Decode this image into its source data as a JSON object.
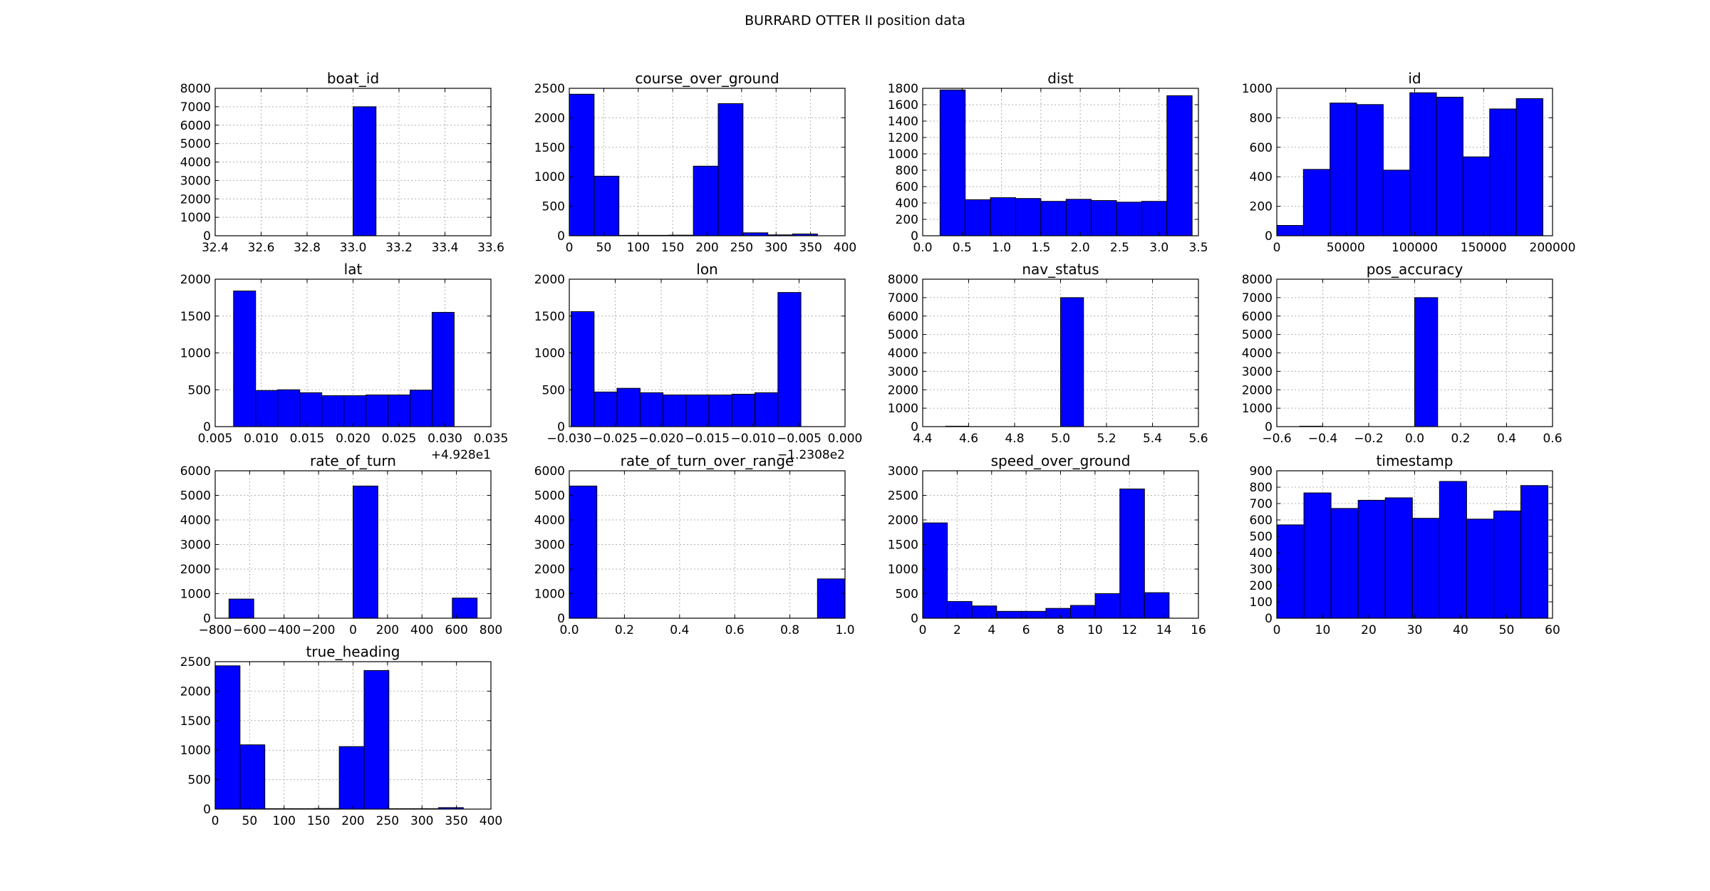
{
  "figure": {
    "title": "BURRARD OTTER II position data"
  },
  "style": {
    "bar_color": "#0000ff",
    "edge_color": "#000000",
    "grid_color": "#b0b0b0"
  },
  "chart_data": [
    {
      "type": "bar",
      "title": "boat_id",
      "xlim": [
        32.4,
        33.6
      ],
      "ylim": [
        0,
        8000
      ],
      "xticks": [
        32.4,
        32.6,
        32.8,
        33.0,
        33.2,
        33.4,
        33.6
      ],
      "xtick_labels": [
        "32.4",
        "32.6",
        "32.8",
        "33.0",
        "33.2",
        "33.4",
        "33.6"
      ],
      "yticks": [
        0,
        1000,
        2000,
        3000,
        4000,
        5000,
        6000,
        7000,
        8000
      ],
      "ytick_labels": [
        "0",
        "1000",
        "2000",
        "3000",
        "4000",
        "5000",
        "6000",
        "7000",
        "8000"
      ],
      "offset": "",
      "bins": [
        [
          33.0,
          33.1,
          7000
        ]
      ],
      "grid": true
    },
    {
      "type": "bar",
      "title": "course_over_ground",
      "xlim": [
        0,
        400
      ],
      "ylim": [
        0,
        2500
      ],
      "xticks": [
        0,
        50,
        100,
        150,
        200,
        250,
        300,
        350,
        400
      ],
      "xtick_labels": [
        "0",
        "50",
        "100",
        "150",
        "200",
        "250",
        "300",
        "350",
        "400"
      ],
      "yticks": [
        0,
        500,
        1000,
        1500,
        2000,
        2500
      ],
      "ytick_labels": [
        "0",
        "500",
        "1000",
        "1500",
        "2000",
        "2500"
      ],
      "offset": "",
      "bins": [
        [
          0,
          36,
          2400
        ],
        [
          36,
          72,
          1010
        ],
        [
          72,
          108,
          3
        ],
        [
          108,
          144,
          3
        ],
        [
          144,
          180,
          10
        ],
        [
          180,
          216,
          1180
        ],
        [
          216,
          252,
          2240
        ],
        [
          252,
          288,
          50
        ],
        [
          288,
          324,
          15
        ],
        [
          324,
          360,
          30
        ]
      ],
      "grid": true
    },
    {
      "type": "bar",
      "title": "dist",
      "xlim": [
        0,
        3.5
      ],
      "ylim": [
        0,
        1800
      ],
      "xticks": [
        0,
        0.5,
        1.0,
        1.5,
        2.0,
        2.5,
        3.0,
        3.5
      ],
      "xtick_labels": [
        "0.0",
        "0.5",
        "1.0",
        "1.5",
        "2.0",
        "2.5",
        "3.0",
        "3.5"
      ],
      "yticks": [
        0,
        200,
        400,
        600,
        800,
        1000,
        1200,
        1400,
        1600,
        1800
      ],
      "ytick_labels": [
        "0",
        "200",
        "400",
        "600",
        "800",
        "1000",
        "1200",
        "1400",
        "1600",
        "1800"
      ],
      "offset": "",
      "bins": [
        [
          0.22,
          0.54,
          1780
        ],
        [
          0.54,
          0.86,
          440
        ],
        [
          0.86,
          1.18,
          465
        ],
        [
          1.18,
          1.5,
          455
        ],
        [
          1.5,
          1.82,
          420
        ],
        [
          1.82,
          2.14,
          445
        ],
        [
          2.14,
          2.46,
          430
        ],
        [
          2.46,
          2.78,
          410
        ],
        [
          2.78,
          3.1,
          420
        ],
        [
          3.1,
          3.42,
          1710
        ]
      ],
      "grid": true
    },
    {
      "type": "bar",
      "title": "id",
      "xlim": [
        0,
        200000
      ],
      "ylim": [
        0,
        1000
      ],
      "xticks": [
        0,
        50000,
        100000,
        150000,
        200000
      ],
      "xtick_labels": [
        "0",
        "50000",
        "100000",
        "150000",
        "200000"
      ],
      "yticks": [
        0,
        200,
        400,
        600,
        800,
        1000
      ],
      "ytick_labels": [
        "0",
        "200",
        "400",
        "600",
        "800",
        "1000"
      ],
      "offset": "",
      "bins": [
        [
          0,
          19300,
          70
        ],
        [
          19300,
          38600,
          450
        ],
        [
          38600,
          57900,
          900
        ],
        [
          57900,
          77200,
          890
        ],
        [
          77200,
          96500,
          445
        ],
        [
          96500,
          115800,
          970
        ],
        [
          115800,
          135100,
          940
        ],
        [
          135100,
          154400,
          535
        ],
        [
          154400,
          173700,
          860
        ],
        [
          173700,
          193000,
          930
        ]
      ],
      "grid": true
    },
    {
      "type": "bar",
      "title": "lat",
      "xlim": [
        0.005,
        0.035
      ],
      "ylim": [
        0,
        2000
      ],
      "xticks": [
        0.005,
        0.01,
        0.015,
        0.02,
        0.025,
        0.03,
        0.035
      ],
      "xtick_labels": [
        "0.005",
        "0.010",
        "0.015",
        "0.020",
        "0.025",
        "0.030",
        "0.035"
      ],
      "yticks": [
        0,
        500,
        1000,
        1500,
        2000
      ],
      "ytick_labels": [
        "0",
        "500",
        "1000",
        "1500",
        "2000"
      ],
      "offset": "+4.928e1",
      "bins": [
        [
          0.007,
          0.0094,
          1840
        ],
        [
          0.0094,
          0.0118,
          490
        ],
        [
          0.0118,
          0.0142,
          500
        ],
        [
          0.0142,
          0.0166,
          460
        ],
        [
          0.0166,
          0.019,
          420
        ],
        [
          0.019,
          0.0214,
          420
        ],
        [
          0.0214,
          0.0238,
          430
        ],
        [
          0.0238,
          0.0262,
          430
        ],
        [
          0.0262,
          0.0286,
          495
        ],
        [
          0.0286,
          0.031,
          1550
        ]
      ],
      "grid": true
    },
    {
      "type": "bar",
      "title": "lon",
      "xlim": [
        -0.03,
        0.0
      ],
      "ylim": [
        0,
        2000
      ],
      "xticks": [
        -0.03,
        -0.025,
        -0.02,
        -0.015,
        -0.01,
        -0.005,
        0.0
      ],
      "xtick_labels": [
        "−0.030",
        "−0.025",
        "−0.020",
        "−0.015",
        "−0.010",
        "−0.005",
        "0.000"
      ],
      "yticks": [
        0,
        500,
        1000,
        1500,
        2000
      ],
      "ytick_labels": [
        "0",
        "500",
        "1000",
        "1500",
        "2000"
      ],
      "offset": "−1.2308e2",
      "bins": [
        [
          -0.0298,
          -0.0273,
          1560
        ],
        [
          -0.0273,
          -0.0248,
          470
        ],
        [
          -0.0248,
          -0.0223,
          520
        ],
        [
          -0.0223,
          -0.0198,
          460
        ],
        [
          -0.0198,
          -0.0173,
          430
        ],
        [
          -0.0173,
          -0.0148,
          430
        ],
        [
          -0.0148,
          -0.0123,
          430
        ],
        [
          -0.0123,
          -0.0098,
          440
        ],
        [
          -0.0098,
          -0.0073,
          460
        ],
        [
          -0.0073,
          -0.0048,
          1820
        ]
      ],
      "grid": true
    },
    {
      "type": "bar",
      "title": "nav_status",
      "xlim": [
        4.4,
        5.6
      ],
      "ylim": [
        0,
        8000
      ],
      "xticks": [
        4.4,
        4.6,
        4.8,
        5.0,
        5.2,
        5.4,
        5.6
      ],
      "xtick_labels": [
        "4.4",
        "4.6",
        "4.8",
        "5.0",
        "5.2",
        "5.4",
        "5.6"
      ],
      "yticks": [
        0,
        1000,
        2000,
        3000,
        4000,
        5000,
        6000,
        7000,
        8000
      ],
      "ytick_labels": [
        "0",
        "1000",
        "2000",
        "3000",
        "4000",
        "5000",
        "6000",
        "7000",
        "8000"
      ],
      "offset": "",
      "bins": [
        [
          4.5,
          4.6,
          20
        ],
        [
          5.0,
          5.1,
          7000
        ]
      ],
      "grid": true
    },
    {
      "type": "bar",
      "title": "pos_accuracy",
      "xlim": [
        -0.6,
        0.6
      ],
      "ylim": [
        0,
        8000
      ],
      "xticks": [
        -0.6,
        -0.4,
        -0.2,
        0.0,
        0.2,
        0.4,
        0.6
      ],
      "xtick_labels": [
        "−0.6",
        "−0.4",
        "−0.2",
        "0.0",
        "0.2",
        "0.4",
        "0.6"
      ],
      "yticks": [
        0,
        1000,
        2000,
        3000,
        4000,
        5000,
        6000,
        7000,
        8000
      ],
      "ytick_labels": [
        "0",
        "1000",
        "2000",
        "3000",
        "4000",
        "5000",
        "6000",
        "7000",
        "8000"
      ],
      "offset": "",
      "bins": [
        [
          -0.5,
          -0.4,
          20
        ],
        [
          0.0,
          0.1,
          7000
        ]
      ],
      "grid": true
    },
    {
      "type": "bar",
      "title": "rate_of_turn",
      "xlim": [
        -800,
        800
      ],
      "ylim": [
        0,
        6000
      ],
      "xticks": [
        -800,
        -600,
        -400,
        -200,
        0,
        200,
        400,
        600,
        800
      ],
      "xtick_labels": [
        "−800",
        "−600",
        "−400",
        "−200",
        "0",
        "200",
        "400",
        "600",
        "800"
      ],
      "yticks": [
        0,
        1000,
        2000,
        3000,
        4000,
        5000,
        6000
      ],
      "ytick_labels": [
        "0",
        "1000",
        "2000",
        "3000",
        "4000",
        "5000",
        "6000"
      ],
      "offset": "",
      "bins": [
        [
          -720,
          -576,
          780
        ],
        [
          0,
          144,
          5380
        ],
        [
          576,
          720,
          820
        ]
      ],
      "grid": true
    },
    {
      "type": "bar",
      "title": "rate_of_turn_over_range",
      "xlim": [
        0.0,
        1.0
      ],
      "ylim": [
        0,
        6000
      ],
      "xticks": [
        0.0,
        0.2,
        0.4,
        0.6,
        0.8,
        1.0
      ],
      "xtick_labels": [
        "0.0",
        "0.2",
        "0.4",
        "0.6",
        "0.8",
        "1.0"
      ],
      "yticks": [
        0,
        1000,
        2000,
        3000,
        4000,
        5000,
        6000
      ],
      "ytick_labels": [
        "0",
        "1000",
        "2000",
        "3000",
        "4000",
        "5000",
        "6000"
      ],
      "offset": "",
      "bins": [
        [
          0.0,
          0.1,
          5380
        ],
        [
          0.9,
          1.0,
          1600
        ]
      ],
      "grid": true
    },
    {
      "type": "bar",
      "title": "speed_over_ground",
      "xlim": [
        0,
        16
      ],
      "ylim": [
        0,
        3000
      ],
      "xticks": [
        0,
        2,
        4,
        6,
        8,
        10,
        12,
        14,
        16
      ],
      "xtick_labels": [
        "0",
        "2",
        "4",
        "6",
        "8",
        "10",
        "12",
        "14",
        "16"
      ],
      "yticks": [
        0,
        500,
        1000,
        1500,
        2000,
        2500,
        3000
      ],
      "ytick_labels": [
        "0",
        "500",
        "1000",
        "1500",
        "2000",
        "2500",
        "3000"
      ],
      "offset": "",
      "bins": [
        [
          0,
          1.43,
          1940
        ],
        [
          1.43,
          2.86,
          340
        ],
        [
          2.86,
          4.29,
          250
        ],
        [
          4.29,
          5.72,
          140
        ],
        [
          5.72,
          7.15,
          140
        ],
        [
          7.15,
          8.58,
          200
        ],
        [
          8.58,
          10.01,
          260
        ],
        [
          10.01,
          11.44,
          500
        ],
        [
          11.44,
          12.87,
          2630
        ],
        [
          12.87,
          14.3,
          520
        ]
      ],
      "grid": true
    },
    {
      "type": "bar",
      "title": "timestamp",
      "xlim": [
        0,
        60
      ],
      "ylim": [
        0,
        900
      ],
      "xticks": [
        0,
        10,
        20,
        30,
        40,
        50,
        60
      ],
      "xtick_labels": [
        "0",
        "10",
        "20",
        "30",
        "40",
        "50",
        "60"
      ],
      "yticks": [
        0,
        100,
        200,
        300,
        400,
        500,
        600,
        700,
        800,
        900
      ],
      "ytick_labels": [
        "0",
        "100",
        "200",
        "300",
        "400",
        "500",
        "600",
        "700",
        "800",
        "900"
      ],
      "offset": "",
      "bins": [
        [
          0,
          5.9,
          570
        ],
        [
          5.9,
          11.8,
          765
        ],
        [
          11.8,
          17.7,
          670
        ],
        [
          17.7,
          23.6,
          720
        ],
        [
          23.6,
          29.5,
          735
        ],
        [
          29.5,
          35.4,
          610
        ],
        [
          35.4,
          41.3,
          835
        ],
        [
          41.3,
          47.2,
          605
        ],
        [
          47.2,
          53.1,
          655
        ],
        [
          53.1,
          59,
          810
        ]
      ],
      "grid": true
    },
    {
      "type": "bar",
      "title": "true_heading",
      "xlim": [
        0,
        400
      ],
      "ylim": [
        0,
        2500
      ],
      "xticks": [
        0,
        50,
        100,
        150,
        200,
        250,
        300,
        350,
        400
      ],
      "xtick_labels": [
        "0",
        "50",
        "100",
        "150",
        "200",
        "250",
        "300",
        "350",
        "400"
      ],
      "yticks": [
        0,
        500,
        1000,
        1500,
        2000,
        2500
      ],
      "ytick_labels": [
        "0",
        "500",
        "1000",
        "1500",
        "2000",
        "2500"
      ],
      "offset": "",
      "bins": [
        [
          0,
          36,
          2430
        ],
        [
          36,
          72,
          1090
        ],
        [
          72,
          108,
          3
        ],
        [
          108,
          144,
          3
        ],
        [
          144,
          180,
          10
        ],
        [
          180,
          216,
          1060
        ],
        [
          216,
          252,
          2350
        ],
        [
          252,
          288,
          3
        ],
        [
          288,
          324,
          3
        ],
        [
          324,
          360,
          25
        ]
      ],
      "grid": true
    }
  ]
}
